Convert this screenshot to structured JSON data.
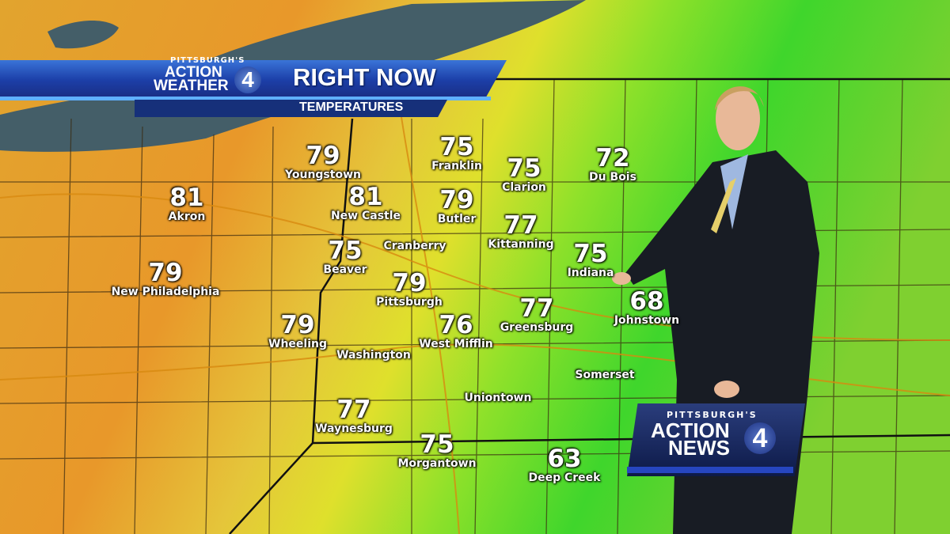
{
  "banner": {
    "station_prefix": "PITTSBURGH'S",
    "brand_line1": "ACTION",
    "brand_line2": "WEATHER",
    "channel": "4",
    "title": "RIGHT NOW",
    "subtitle": "TEMPERATURES"
  },
  "news_logo": {
    "prefix": "PITTSBURGH'S",
    "line1": "ACTION",
    "line2": "NEWS",
    "channel": "4"
  },
  "colors": {
    "warm": "#e79a2c",
    "mid": "#e0dc2a",
    "cool": "#43d62a",
    "lake": "#445e68",
    "banner_blue": "#1c3fa8"
  },
  "cities": [
    {
      "name": "Youngstown",
      "temp": "79"
    },
    {
      "name": "Akron",
      "temp": "81"
    },
    {
      "name": "New Castle",
      "temp": "81"
    },
    {
      "name": "Franklin",
      "temp": "75"
    },
    {
      "name": "Butler",
      "temp": "79"
    },
    {
      "name": "Clarion",
      "temp": "75"
    },
    {
      "name": "Du Bois",
      "temp": "72"
    },
    {
      "name": "Kittanning",
      "temp": "77"
    },
    {
      "name": "Beaver",
      "temp": "75"
    },
    {
      "name": "Cranberry",
      "temp": ""
    },
    {
      "name": "New Philadelphia",
      "temp": "79"
    },
    {
      "name": "Pittsburgh",
      "temp": "79"
    },
    {
      "name": "Indiana",
      "temp": "75"
    },
    {
      "name": "Johnstown",
      "temp": "68"
    },
    {
      "name": "Greensburg",
      "temp": "77"
    },
    {
      "name": "Wheeling",
      "temp": "79"
    },
    {
      "name": "West Mifflin",
      "temp": "76"
    },
    {
      "name": "Washington",
      "temp": ""
    },
    {
      "name": "Somerset",
      "temp": ""
    },
    {
      "name": "Uniontown",
      "temp": ""
    },
    {
      "name": "Waynesburg",
      "temp": "77"
    },
    {
      "name": "Morgantown",
      "temp": "75"
    },
    {
      "name": "Deep Creek",
      "temp": "63"
    }
  ]
}
